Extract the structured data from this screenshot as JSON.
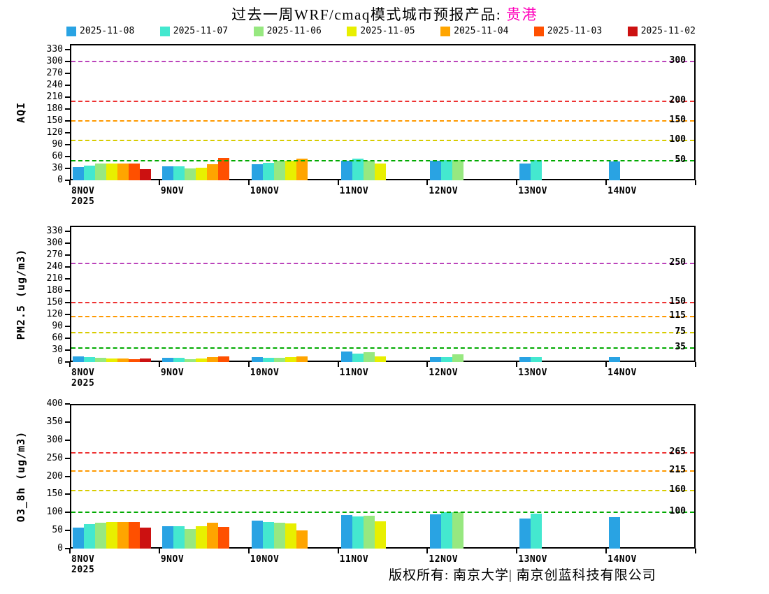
{
  "title": {
    "prefix": "过去一周WRF/cmaq模式城市预报产品:",
    "city": "贵港"
  },
  "footer": "版权所有: 南京大学| 南京创蓝科技有限公司",
  "colors": {
    "city": "#ff00bb",
    "series": [
      "#29a3e3",
      "#44e8cf",
      "#97e880",
      "#e8ef00",
      "#ffa500",
      "#ff5000",
      "#cc1111"
    ]
  },
  "legend": [
    "2025-11-08",
    "2025-11-07",
    "2025-11-06",
    "2025-11-05",
    "2025-11-04",
    "2025-11-03",
    "2025-11-02"
  ],
  "x_year": "2025",
  "chart_data": [
    {
      "id": "aqi",
      "type": "bar",
      "ylabel": "AQI",
      "ylim": [
        0,
        345
      ],
      "yticks": [
        0,
        30,
        60,
        90,
        120,
        150,
        180,
        210,
        240,
        270,
        300,
        330
      ],
      "thresholds": [
        {
          "value": 50,
          "label": "50",
          "color": "#00aa00"
        },
        {
          "value": 100,
          "label": "100",
          "color": "#d8cc00"
        },
        {
          "value": 150,
          "label": "150",
          "color": "#ff9900"
        },
        {
          "value": 200,
          "label": "200",
          "color": "#ee3333"
        },
        {
          "value": 300,
          "label": "300",
          "color": "#bb44bb"
        }
      ],
      "categories": [
        "8NOV",
        "9NOV",
        "10NOV",
        "11NOV",
        "12NOV",
        "13NOV",
        "14NOV"
      ],
      "series": [
        {
          "name": "2025-11-08",
          "values": [
            33,
            36,
            40,
            49,
            49,
            43,
            48
          ]
        },
        {
          "name": "2025-11-07",
          "values": [
            38,
            36,
            44,
            55,
            52,
            52,
            null
          ]
        },
        {
          "name": "2025-11-06",
          "values": [
            42,
            30,
            49,
            49,
            52,
            null,
            null
          ]
        },
        {
          "name": "2025-11-05",
          "values": [
            42,
            32,
            49,
            43,
            null,
            null,
            null
          ]
        },
        {
          "name": "2025-11-04",
          "values": [
            42,
            40,
            55,
            null,
            null,
            null,
            null
          ]
        },
        {
          "name": "2025-11-03",
          "values": [
            42,
            57,
            null,
            null,
            null,
            null,
            null
          ]
        },
        {
          "name": "2025-11-02",
          "values": [
            28,
            null,
            null,
            null,
            null,
            null,
            null
          ]
        }
      ]
    },
    {
      "id": "pm25",
      "type": "bar",
      "ylabel": "PM2.5 (ug/m3)",
      "ylim": [
        0,
        345
      ],
      "yticks": [
        0,
        30,
        60,
        90,
        120,
        150,
        180,
        210,
        240,
        270,
        300,
        330
      ],
      "thresholds": [
        {
          "value": 35,
          "label": "35",
          "color": "#00aa00"
        },
        {
          "value": 75,
          "label": "75",
          "color": "#d8cc00"
        },
        {
          "value": 115,
          "label": "115",
          "color": "#ff9900"
        },
        {
          "value": 150,
          "label": "150",
          "color": "#ee3333"
        },
        {
          "value": 250,
          "label": "250",
          "color": "#bb44bb"
        }
      ],
      "categories": [
        "8NOV",
        "9NOV",
        "10NOV",
        "11NOV",
        "12NOV",
        "13NOV",
        "14NOV"
      ],
      "series": [
        {
          "name": "2025-11-08",
          "values": [
            15,
            10,
            12,
            26,
            13,
            13,
            13
          ]
        },
        {
          "name": "2025-11-07",
          "values": [
            13,
            10,
            10,
            22,
            13,
            12,
            null
          ]
        },
        {
          "name": "2025-11-06",
          "values": [
            10,
            7,
            10,
            24,
            19,
            null,
            null
          ]
        },
        {
          "name": "2025-11-05",
          "values": [
            8,
            8,
            12,
            14,
            null,
            null,
            null
          ]
        },
        {
          "name": "2025-11-04",
          "values": [
            8,
            12,
            15,
            null,
            null,
            null,
            null
          ]
        },
        {
          "name": "2025-11-03",
          "values": [
            7,
            15,
            null,
            null,
            null,
            null,
            null
          ]
        },
        {
          "name": "2025-11-02",
          "values": [
            8,
            null,
            null,
            null,
            null,
            null,
            null
          ]
        }
      ]
    },
    {
      "id": "o3",
      "type": "bar",
      "ylabel": "O3_8h (ug/m3)",
      "ylim": [
        0,
        400
      ],
      "yticks": [
        0,
        50,
        100,
        150,
        200,
        250,
        300,
        350,
        400
      ],
      "thresholds": [
        {
          "value": 100,
          "label": "100",
          "color": "#00aa00"
        },
        {
          "value": 160,
          "label": "160",
          "color": "#d8cc00"
        },
        {
          "value": 215,
          "label": "215",
          "color": "#ff9900"
        },
        {
          "value": 265,
          "label": "265",
          "color": "#ee3333"
        }
      ],
      "categories": [
        "8NOV",
        "9NOV",
        "10NOV",
        "11NOV",
        "12NOV",
        "13NOV",
        "14NOV"
      ],
      "series": [
        {
          "name": "2025-11-08",
          "values": [
            58,
            62,
            78,
            93,
            95,
            83,
            87
          ]
        },
        {
          "name": "2025-11-07",
          "values": [
            67,
            62,
            74,
            89,
            100,
            97,
            null
          ]
        },
        {
          "name": "2025-11-06",
          "values": [
            72,
            55,
            72,
            90,
            100,
            null,
            null
          ]
        },
        {
          "name": "2025-11-05",
          "values": [
            74,
            62,
            70,
            75,
            null,
            null,
            null
          ]
        },
        {
          "name": "2025-11-04",
          "values": [
            74,
            72,
            50,
            null,
            null,
            null,
            null
          ]
        },
        {
          "name": "2025-11-03",
          "values": [
            74,
            60,
            null,
            null,
            null,
            null,
            null
          ]
        },
        {
          "name": "2025-11-02",
          "values": [
            58,
            null,
            null,
            null,
            null,
            null,
            null
          ]
        }
      ]
    }
  ]
}
